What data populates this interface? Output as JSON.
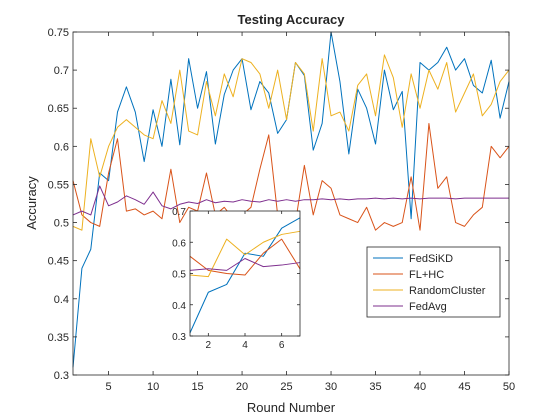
{
  "chart_data": {
    "type": "line",
    "title": "Testing Accuracy",
    "xlabel": "Round Number",
    "ylabel": "Accuracy",
    "xlim": [
      1,
      50
    ],
    "ylim": [
      0.3,
      0.75
    ],
    "xticks": [
      5,
      10,
      15,
      20,
      25,
      30,
      35,
      40,
      45,
      50
    ],
    "yticks": [
      0.3,
      0.35,
      0.4,
      0.45,
      0.5,
      0.55,
      0.6,
      0.65,
      0.7,
      0.75
    ],
    "grid": false,
    "legend_position": "right",
    "series": [
      {
        "name": "FedSiKD",
        "color": "#0072BD",
        "values": [
          0.31,
          0.44,
          0.465,
          0.565,
          0.555,
          0.645,
          0.678,
          0.645,
          0.58,
          0.648,
          0.6,
          0.688,
          0.602,
          0.715,
          0.65,
          0.698,
          0.603,
          0.668,
          0.7,
          0.715,
          0.648,
          0.685,
          0.67,
          0.617,
          0.635,
          0.71,
          0.693,
          0.595,
          0.63,
          0.75,
          0.685,
          0.59,
          0.675,
          0.65,
          0.603,
          0.7,
          0.648,
          0.672,
          0.505,
          0.71,
          0.7,
          0.71,
          0.73,
          0.7,
          0.715,
          0.68,
          0.67,
          0.713,
          0.637,
          0.685
        ]
      },
      {
        "name": "FL+HC",
        "color": "#D95319",
        "values": [
          0.555,
          0.51,
          0.5,
          0.495,
          0.565,
          0.61,
          0.515,
          0.518,
          0.51,
          0.515,
          0.505,
          0.57,
          0.5,
          0.52,
          0.515,
          0.565,
          0.51,
          0.52,
          0.505,
          0.51,
          0.52,
          0.57,
          0.615,
          0.51,
          0.505,
          0.5,
          0.575,
          0.51,
          0.555,
          0.545,
          0.51,
          0.505,
          0.5,
          0.52,
          0.49,
          0.5,
          0.495,
          0.5,
          0.56,
          0.49,
          0.63,
          0.545,
          0.56,
          0.5,
          0.495,
          0.51,
          0.52,
          0.6,
          0.585,
          0.6
        ]
      },
      {
        "name": "RandomCluster",
        "color": "#EDB120",
        "values": [
          0.495,
          0.49,
          0.61,
          0.56,
          0.6,
          0.625,
          0.635,
          0.625,
          0.615,
          0.61,
          0.66,
          0.63,
          0.7,
          0.62,
          0.615,
          0.685,
          0.64,
          0.695,
          0.665,
          0.715,
          0.71,
          0.695,
          0.65,
          0.7,
          0.635,
          0.71,
          0.695,
          0.62,
          0.715,
          0.64,
          0.645,
          0.62,
          0.68,
          0.695,
          0.64,
          0.72,
          0.69,
          0.625,
          0.695,
          0.65,
          0.7,
          0.675,
          0.71,
          0.645,
          0.67,
          0.695,
          0.64,
          0.655,
          0.685,
          0.7
        ]
      },
      {
        "name": "FedAvg",
        "color": "#7E2F8E",
        "values": [
          0.51,
          0.515,
          0.51,
          0.548,
          0.522,
          0.527,
          0.535,
          0.53,
          0.524,
          0.54,
          0.522,
          0.518,
          0.524,
          0.527,
          0.525,
          0.53,
          0.526,
          0.528,
          0.527,
          0.53,
          0.528,
          0.527,
          0.53,
          0.528,
          0.53,
          0.528,
          0.53,
          0.53,
          0.531,
          0.53,
          0.531,
          0.53,
          0.531,
          0.531,
          0.532,
          0.531,
          0.532,
          0.531,
          0.532,
          0.531,
          0.532,
          0.532,
          0.532,
          0.531,
          0.532,
          0.532,
          0.532,
          0.532,
          0.532,
          0.532
        ]
      }
    ],
    "inset": {
      "xlim": [
        1,
        7
      ],
      "ylim": [
        0.3,
        0.7
      ],
      "xticks": [
        2,
        4,
        6
      ],
      "yticks": [
        0.3,
        0.4,
        0.5,
        0.6,
        0.7
      ],
      "series": [
        {
          "name": "FedSiKD",
          "color": "#0072BD",
          "x": [
            1,
            2,
            3,
            4,
            5,
            6,
            7
          ],
          "values": [
            0.31,
            0.44,
            0.465,
            0.565,
            0.555,
            0.645,
            0.678
          ]
        },
        {
          "name": "FL+HC",
          "color": "#D95319",
          "x": [
            1,
            2,
            3,
            4,
            5,
            6,
            7
          ],
          "values": [
            0.555,
            0.51,
            0.5,
            0.495,
            0.565,
            0.61,
            0.515
          ]
        },
        {
          "name": "RandomCluster",
          "color": "#EDB120",
          "x": [
            1,
            2,
            3,
            4,
            5,
            6,
            7
          ],
          "values": [
            0.495,
            0.49,
            0.61,
            0.56,
            0.6,
            0.625,
            0.635
          ]
        },
        {
          "name": "FedAvg",
          "color": "#7E2F8E",
          "x": [
            1,
            2,
            3,
            4,
            5,
            6,
            7
          ],
          "values": [
            0.51,
            0.515,
            0.51,
            0.548,
            0.522,
            0.527,
            0.535
          ]
        }
      ]
    }
  }
}
